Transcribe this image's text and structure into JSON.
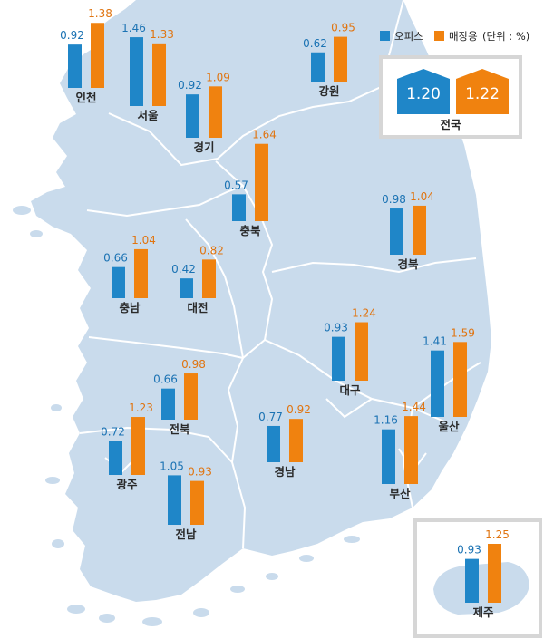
{
  "chart_data": {
    "type": "bar",
    "legend": {
      "office": "오피스",
      "retail": "매장용",
      "unit": "(단위 : %)",
      "placement": "top-right"
    },
    "colors": {
      "office": "#1f86c8",
      "retail": "#f0820f",
      "map": "#c9dbec",
      "border": "#ffffff"
    },
    "national": {
      "label": "전국",
      "office": "1.20",
      "retail": "1.22"
    },
    "regions": [
      {
        "name": "인천",
        "office": 0.92,
        "retail": 1.38,
        "office_label": "0.92",
        "retail_label": "1.38"
      },
      {
        "name": "서울",
        "office": 1.46,
        "retail": 1.33,
        "office_label": "1.46",
        "retail_label": "1.33"
      },
      {
        "name": "경기",
        "office": 0.92,
        "retail": 1.09,
        "office_label": "0.92",
        "retail_label": "1.09"
      },
      {
        "name": "강원",
        "office": 0.62,
        "retail": 0.95,
        "office_label": "0.62",
        "retail_label": "0.95"
      },
      {
        "name": "충북",
        "office": 0.57,
        "retail": 1.64,
        "office_label": "0.57",
        "retail_label": "1.64"
      },
      {
        "name": "경북",
        "office": 0.98,
        "retail": 1.04,
        "office_label": "0.98",
        "retail_label": "1.04"
      },
      {
        "name": "충남",
        "office": 0.66,
        "retail": 1.04,
        "office_label": "0.66",
        "retail_label": "1.04"
      },
      {
        "name": "대전",
        "office": 0.42,
        "retail": 0.82,
        "office_label": "0.42",
        "retail_label": "0.82"
      },
      {
        "name": "대구",
        "office": 0.93,
        "retail": 1.24,
        "office_label": "0.93",
        "retail_label": "1.24"
      },
      {
        "name": "울산",
        "office": 1.41,
        "retail": 1.59,
        "office_label": "1.41",
        "retail_label": "1.59"
      },
      {
        "name": "전북",
        "office": 0.66,
        "retail": 0.98,
        "office_label": "0.66",
        "retail_label": "0.98"
      },
      {
        "name": "경남",
        "office": 0.77,
        "retail": 0.92,
        "office_label": "0.77",
        "retail_label": "0.92"
      },
      {
        "name": "광주",
        "office": 0.72,
        "retail": 1.23,
        "office_label": "0.72",
        "retail_label": "1.23"
      },
      {
        "name": "부산",
        "office": 1.16,
        "retail": 1.44,
        "office_label": "1.16",
        "retail_label": "1.44"
      },
      {
        "name": "전남",
        "office": 1.05,
        "retail": 0.93,
        "office_label": "1.05",
        "retail_label": "0.93"
      },
      {
        "name": "제주",
        "office": 0.93,
        "retail": 1.25,
        "office_label": "0.93",
        "retail_label": "1.25"
      }
    ]
  }
}
